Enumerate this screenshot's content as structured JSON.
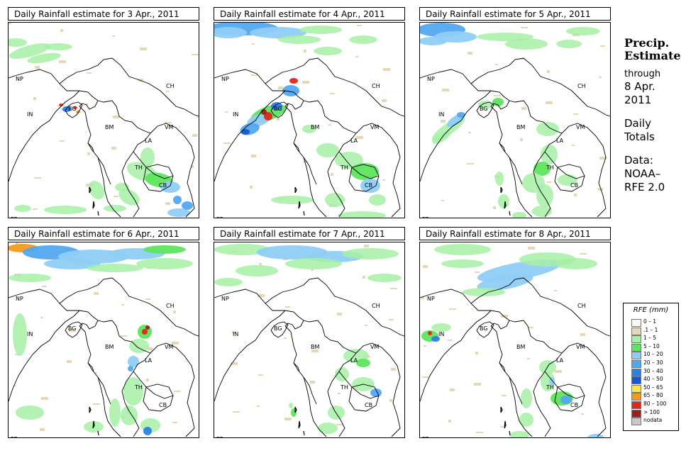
{
  "panels": [
    {
      "title": "Daily Rainfall estimate for  3 Apr., 2011"
    },
    {
      "title": "Daily Rainfall estimate for  4 Apr., 2011"
    },
    {
      "title": "Daily Rainfall estimate for  5 Apr., 2011"
    },
    {
      "title": "Daily Rainfall estimate for  6 Apr., 2011"
    },
    {
      "title": "Daily Rainfall estimate for  7 Apr., 2011"
    },
    {
      "title": "Daily Rainfall estimate for  8 Apr., 2011"
    }
  ],
  "country_labels": [
    "NP",
    "CH",
    "IN",
    "BG",
    "BM",
    "VM",
    "LA",
    "TH",
    "CB",
    "CE"
  ],
  "side": {
    "title_line1": "Precip.",
    "title_line2": "Estimate",
    "through": "through",
    "date_line1": "8 Apr.",
    "date_line2": "2011",
    "daily_line1": "Daily",
    "daily_line2": "Totals",
    "data_line1": "Data:",
    "data_line2": "NOAA–",
    "data_line3": "RFE 2.0"
  },
  "legend": {
    "title": "RFE (mm)",
    "items": [
      {
        "label": "0 – 1",
        "color": "#fbfbf5"
      },
      {
        "label": ".1 – 1",
        "color": "#e6d7b6"
      },
      {
        "label": "1 – 5",
        "color": "#a6f0a6"
      },
      {
        "label": "5 – 10",
        "color": "#5ee45e"
      },
      {
        "label": "10 – 20",
        "color": "#8fcdf6"
      },
      {
        "label": "20 – 30",
        "color": "#52a8f0"
      },
      {
        "label": "30 – 40",
        "color": "#2d7fe6"
      },
      {
        "label": "40 – 50",
        "color": "#1a56d0"
      },
      {
        "label": "50 – 65",
        "color": "#f6e45a"
      },
      {
        "label": "65 – 80",
        "color": "#f39a1c"
      },
      {
        "label": "80 – 100",
        "color": "#e2261c"
      },
      {
        "label": "> 100",
        "color": "#9c1e1e"
      },
      {
        "label": "nodata",
        "color": "#c8c8c8"
      }
    ]
  }
}
